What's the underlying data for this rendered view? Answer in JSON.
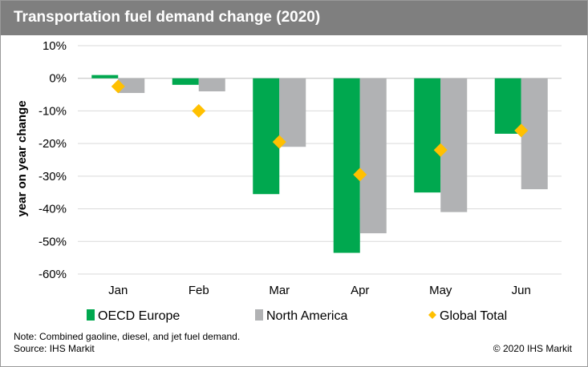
{
  "title": "Transportation fuel demand change (2020)",
  "footnote": {
    "note": "Note: Combined gaoline, diesel, and jet fuel demand.",
    "source": "Source: IHS Markit"
  },
  "copyright": "© 2020 IHS Markit",
  "colors": {
    "title_bar": "#7f7f7f",
    "oecd_europe": "#00a84f",
    "north_america": "#b1b2b4",
    "global_total": "#ffc000",
    "grid": "#d9d9d9",
    "zero_line": "#bfbfbf"
  },
  "chart_data": {
    "type": "bar",
    "title": "Transportation fuel demand change (2020)",
    "xlabel": "",
    "ylabel": "year on year change",
    "categories": [
      "Jan",
      "Feb",
      "Mar",
      "Apr",
      "May",
      "Jun"
    ],
    "ylim": [
      -60,
      10
    ],
    "ytick_values": [
      10,
      0,
      -10,
      -20,
      -30,
      -40,
      -50,
      -60
    ],
    "ytick_labels": [
      "10%",
      "0%",
      "-10%",
      "-20%",
      "-30%",
      "-40%",
      "-50%",
      "-60%"
    ],
    "grid": true,
    "legend_position": "bottom",
    "series": [
      {
        "name": "OECD Europe",
        "kind": "bar",
        "color": "#00a84f",
        "values": [
          1,
          -2,
          -35.5,
          -53.5,
          -35,
          -17
        ]
      },
      {
        "name": "North America",
        "kind": "bar",
        "color": "#b1b2b4",
        "values": [
          -4.5,
          -4,
          -21,
          -47.5,
          -41,
          -34
        ]
      },
      {
        "name": "Global Total",
        "kind": "marker",
        "color": "#ffc000",
        "values": [
          -2.5,
          -10,
          -19.5,
          -29.5,
          -22,
          -16
        ]
      }
    ]
  }
}
